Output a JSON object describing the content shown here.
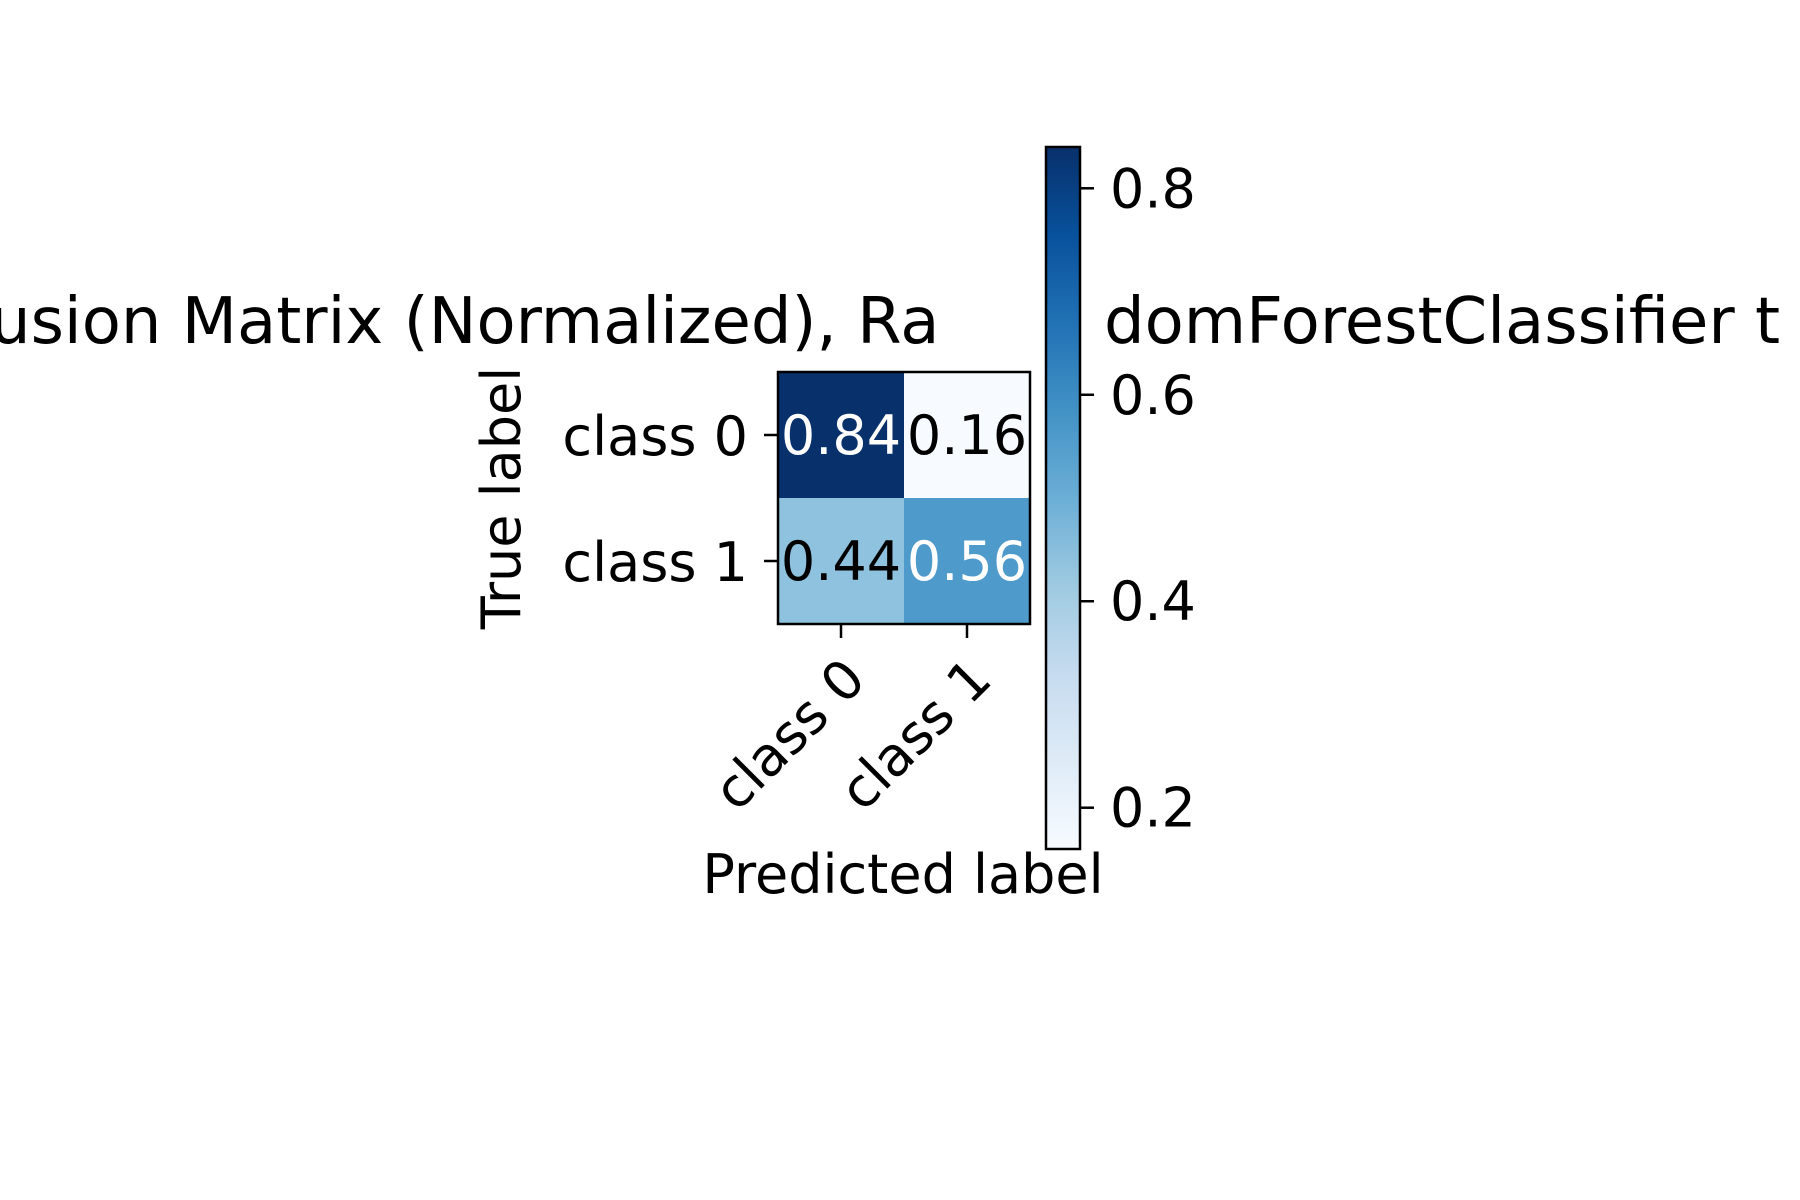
{
  "chart_data": {
    "type": "heatmap",
    "title": "Confusion Matrix (Normalized), RandomForestClassifier t",
    "title_visible_fragments": [
      "usion Matrix (Normalized), Ra",
      "domForestClassifier t"
    ],
    "xlabel": "Predicted label",
    "ylabel": "True label",
    "x_categories": [
      "class 0",
      "class 1"
    ],
    "y_categories": [
      "class 0",
      "class 1"
    ],
    "values": [
      [
        0.84,
        0.16
      ],
      [
        0.44,
        0.56
      ]
    ],
    "value_labels": [
      [
        "0.84",
        "0.16"
      ],
      [
        "0.44",
        "0.56"
      ]
    ],
    "colormap": "Blues",
    "colorbar": {
      "range": [
        0.16,
        0.84
      ],
      "ticks": [
        0.2,
        0.4,
        0.6,
        0.8
      ],
      "tick_labels": [
        "0.2",
        "0.4",
        "0.6",
        "0.8"
      ]
    },
    "colors": {
      "low": "#f7fbff",
      "high": "#08306b",
      "text_on_dark": "#ffffff",
      "text_on_light": "#000000"
    }
  }
}
